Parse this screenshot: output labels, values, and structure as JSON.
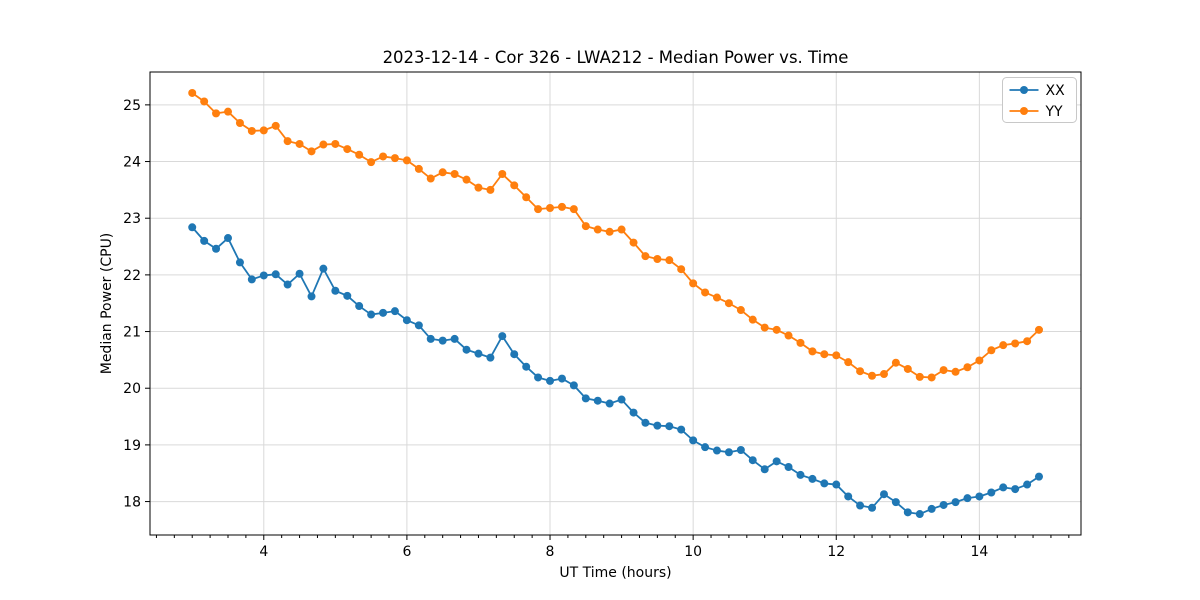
{
  "chart_data": {
    "type": "line",
    "title": "2023-12-14 - Cor 326 - LWA212 - Median Power vs. Time",
    "xlabel": "UT Time (hours)",
    "ylabel": "Median Power (CPU)",
    "xlim": [
      2.41,
      15.42
    ],
    "ylim": [
      17.41,
      25.58
    ],
    "x_major_ticks": [
      4,
      6,
      8,
      10,
      12,
      14
    ],
    "x_minor_step": 0.25,
    "y_major_ticks": [
      18,
      19,
      20,
      21,
      22,
      23,
      24,
      25
    ],
    "grid": true,
    "grid_color": "#d9d9d9",
    "background": "#ffffff",
    "legend_position": "upper right",
    "x": [
      3.0,
      3.167,
      3.333,
      3.5,
      3.667,
      3.833,
      4.0,
      4.167,
      4.333,
      4.5,
      4.667,
      4.833,
      5.0,
      5.167,
      5.333,
      5.5,
      5.667,
      5.833,
      6.0,
      6.167,
      6.333,
      6.5,
      6.667,
      6.833,
      7.0,
      7.167,
      7.333,
      7.5,
      7.667,
      7.833,
      8.0,
      8.167,
      8.333,
      8.5,
      8.667,
      8.833,
      9.0,
      9.167,
      9.333,
      9.5,
      9.667,
      9.833,
      10.0,
      10.167,
      10.333,
      10.5,
      10.667,
      10.833,
      11.0,
      11.167,
      11.333,
      11.5,
      11.667,
      11.833,
      12.0,
      12.167,
      12.333,
      12.5,
      12.667,
      12.833,
      13.0,
      13.167,
      13.333,
      13.5,
      13.667,
      13.833,
      14.0,
      14.167,
      14.333,
      14.5,
      14.667,
      14.833
    ],
    "series": [
      {
        "name": "XX",
        "color": "#1f77b4",
        "marker": "circle",
        "values": [
          22.84,
          22.6,
          22.46,
          22.65,
          22.22,
          21.92,
          21.99,
          22.01,
          21.83,
          22.02,
          21.62,
          22.11,
          21.72,
          21.63,
          21.45,
          21.3,
          21.33,
          21.36,
          21.2,
          21.11,
          20.87,
          20.84,
          20.87,
          20.68,
          20.61,
          20.54,
          20.92,
          20.6,
          20.38,
          20.19,
          20.13,
          20.17,
          20.05,
          19.82,
          19.78,
          19.73,
          19.8,
          19.57,
          19.39,
          19.34,
          19.33,
          19.27,
          19.08,
          18.96,
          18.9,
          18.87,
          18.91,
          18.73,
          18.57,
          18.71,
          18.61,
          18.47,
          18.4,
          18.32,
          18.3,
          18.09,
          17.93,
          17.89,
          18.13,
          17.99,
          17.81,
          17.78,
          17.87,
          17.94,
          17.99,
          18.06,
          18.09,
          18.16,
          18.25,
          18.22,
          18.3,
          18.44
        ]
      },
      {
        "name": "YY",
        "color": "#ff7f0e",
        "marker": "circle",
        "values": [
          25.21,
          25.06,
          24.85,
          24.88,
          24.68,
          24.54,
          24.55,
          24.63,
          24.36,
          24.31,
          24.18,
          24.3,
          24.31,
          24.22,
          24.12,
          23.99,
          24.09,
          24.06,
          24.02,
          23.87,
          23.7,
          23.81,
          23.78,
          23.68,
          23.54,
          23.5,
          23.78,
          23.58,
          23.37,
          23.16,
          23.18,
          23.2,
          23.16,
          22.86,
          22.8,
          22.76,
          22.8,
          22.57,
          22.33,
          22.28,
          22.26,
          22.1,
          21.85,
          21.69,
          21.6,
          21.5,
          21.38,
          21.21,
          21.07,
          21.03,
          20.93,
          20.8,
          20.65,
          20.6,
          20.58,
          20.46,
          20.3,
          20.22,
          20.25,
          20.45,
          20.34,
          20.2,
          20.19,
          20.32,
          20.29,
          20.37,
          20.49,
          20.67,
          20.76,
          20.79,
          20.83,
          21.03
        ]
      }
    ]
  }
}
